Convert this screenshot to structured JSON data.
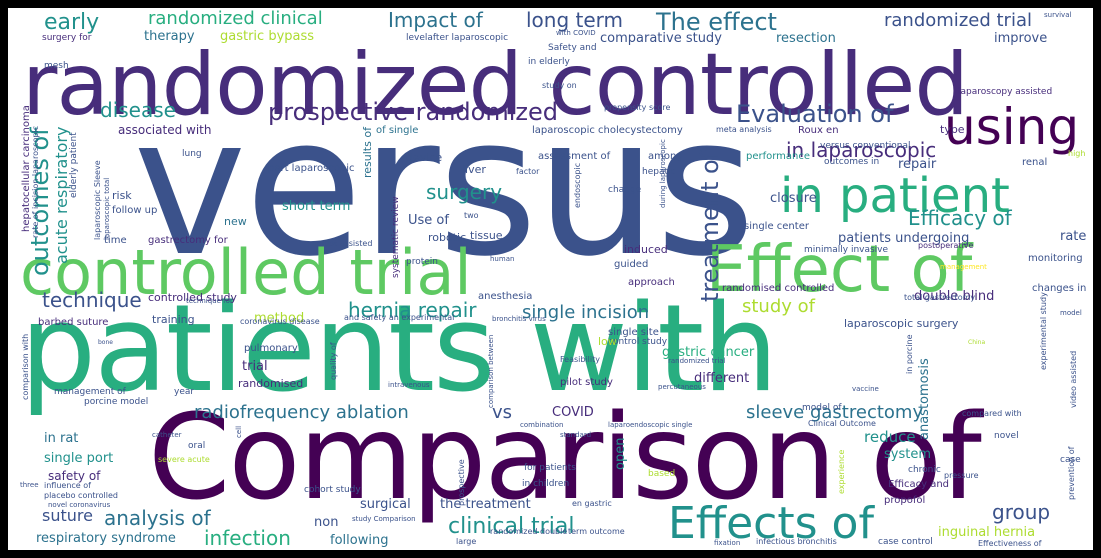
{
  "palette": {
    "dark_purple": "#440154",
    "purple": "#472d7b",
    "indigo": "#3b528b",
    "blue": "#2c728e",
    "teal": "#21918c",
    "green_teal": "#28ae80",
    "green": "#5ec962",
    "lime": "#addc30",
    "yellow": "#fde725"
  },
  "words": [
    {
      "text": "versus",
      "weight": 1.0
    },
    {
      "text": "randomized controlled",
      "weight": 0.96
    },
    {
      "text": "Comparison of",
      "weight": 0.94
    },
    {
      "text": "patients with",
      "weight": 0.92
    },
    {
      "text": "controlled trial",
      "weight": 0.7
    },
    {
      "text": "Effect of",
      "weight": 0.68
    },
    {
      "text": "in patient",
      "weight": 0.62
    },
    {
      "text": "using",
      "weight": 0.6
    },
    {
      "text": "Effects of",
      "weight": 0.55
    },
    {
      "text": "prospective randomized",
      "weight": 0.45
    },
    {
      "text": "Evaluation of",
      "weight": 0.42
    },
    {
      "text": "treatment of",
      "weight": 0.4
    },
    {
      "text": "outcomes of",
      "weight": 0.38
    },
    {
      "text": "in laparoscopic",
      "weight": 0.36
    },
    {
      "text": "hernia repair",
      "weight": 0.35
    },
    {
      "text": "clinical trial",
      "weight": 0.35
    },
    {
      "text": "randomized clinical",
      "weight": 0.3
    },
    {
      "text": "The effect",
      "weight": 0.34
    },
    {
      "text": "Impact of",
      "weight": 0.3
    },
    {
      "text": "long term",
      "weight": 0.3
    },
    {
      "text": "randomized trial",
      "weight": 0.28
    },
    {
      "text": "early",
      "weight": 0.3
    },
    {
      "text": "disease",
      "weight": 0.3
    },
    {
      "text": "surgery",
      "weight": 0.3
    },
    {
      "text": "Efficacy of",
      "weight": 0.3
    },
    {
      "text": "technique",
      "weight": 0.3
    },
    {
      "text": "single incision",
      "weight": 0.3
    },
    {
      "text": "study of",
      "weight": 0.3
    },
    {
      "text": "radiofrequency ablation",
      "weight": 0.3
    },
    {
      "text": "sleeve gastrectomy",
      "weight": 0.3
    },
    {
      "text": "analysis of",
      "weight": 0.3
    },
    {
      "text": "infection",
      "weight": 0.3
    },
    {
      "text": "group",
      "weight": 0.3
    },
    {
      "text": "acute respiratory",
      "weight": 0.25
    },
    {
      "text": "gastric bypass",
      "weight": 0.22
    },
    {
      "text": "comparative study",
      "weight": 0.2
    },
    {
      "text": "therapy",
      "weight": 0.2
    },
    {
      "text": "resection",
      "weight": 0.2
    },
    {
      "text": "improve",
      "weight": 0.2
    },
    {
      "text": "associated with",
      "weight": 0.18
    },
    {
      "text": "short term",
      "weight": 0.2
    },
    {
      "text": "Use of",
      "weight": 0.2
    },
    {
      "text": "repair",
      "weight": 0.2
    },
    {
      "text": "closure",
      "weight": 0.2
    },
    {
      "text": "rate",
      "weight": 0.2
    },
    {
      "text": "patients undergoing",
      "weight": 0.2
    },
    {
      "text": "double blind",
      "weight": 0.2
    },
    {
      "text": "controlled study",
      "weight": 0.18
    },
    {
      "text": "method",
      "weight": 0.2
    },
    {
      "text": "laparoscopic surgery",
      "weight": 0.16
    },
    {
      "text": "trial",
      "weight": 0.2
    },
    {
      "text": "randomised",
      "weight": 0.16
    },
    {
      "text": "different",
      "weight": 0.2
    },
    {
      "text": "gastric cancer",
      "weight": 0.2
    },
    {
      "text": "anastomosis",
      "weight": 0.2
    },
    {
      "text": "reduce",
      "weight": 0.22
    },
    {
      "text": "system",
      "weight": 0.2
    },
    {
      "text": "in rat",
      "weight": 0.2
    },
    {
      "text": "single port",
      "weight": 0.2
    },
    {
      "text": "vs",
      "weight": 0.22
    },
    {
      "text": "COVID",
      "weight": 0.2
    },
    {
      "text": "open",
      "weight": 0.2
    },
    {
      "text": "safety of",
      "weight": 0.18
    },
    {
      "text": "suture",
      "weight": 0.2
    },
    {
      "text": "non",
      "weight": 0.2
    },
    {
      "text": "surgical",
      "weight": 0.2
    },
    {
      "text": "the treatment",
      "weight": 0.2
    },
    {
      "text": "inguinal hernia",
      "weight": 0.2
    },
    {
      "text": "respiratory syndrome",
      "weight": 0.2
    },
    {
      "text": "following",
      "weight": 0.2
    },
    {
      "text": "mesh",
      "weight": 0.1
    },
    {
      "text": "surgery for",
      "weight": 0.1
    },
    {
      "text": "levelafter laparoscopic",
      "weight": 0.1
    },
    {
      "text": "Safety and",
      "weight": 0.1
    },
    {
      "text": "in elderly",
      "weight": 0.1
    },
    {
      "text": "study on",
      "weight": 0.08
    },
    {
      "text": "with COVID",
      "weight": 0.06
    },
    {
      "text": "hepatocellular carcinoma",
      "weight": 0.12
    },
    {
      "text": "elderly patient",
      "weight": 0.1
    },
    {
      "text": "rate of incision laparoscopic",
      "weight": 0.08
    },
    {
      "text": "laparoscopic Sleeve",
      "weight": 0.08
    },
    {
      "text": "laparoscopic total",
      "weight": 0.06
    },
    {
      "text": "risk",
      "weight": 0.12
    },
    {
      "text": "follow up",
      "weight": 0.1
    },
    {
      "text": "lung",
      "weight": 0.08
    },
    {
      "text": "of single",
      "weight": 0.1
    },
    {
      "text": "laparoscopic cholecystectomy",
      "weight": 0.1
    },
    {
      "text": "meta analysis",
      "weight": 0.08
    },
    {
      "text": "Roux en",
      "weight": 0.12
    },
    {
      "text": "type",
      "weight": 0.12
    },
    {
      "text": "laparoscopy assisted",
      "weight": 0.1
    },
    {
      "text": "propensity score",
      "weight": 0.08
    },
    {
      "text": "results of",
      "weight": 0.12
    },
    {
      "text": "device",
      "weight": 0.12
    },
    {
      "text": "liver",
      "weight": 0.12
    },
    {
      "text": "assessment of",
      "weight": 0.12
    },
    {
      "text": "among",
      "weight": 0.12
    },
    {
      "text": "performance",
      "weight": 0.12
    },
    {
      "text": "versus conventional",
      "weight": 0.1
    },
    {
      "text": "outcomes in",
      "weight": 0.1
    },
    {
      "text": "renal",
      "weight": 0.12
    },
    {
      "text": "high",
      "weight": 0.08
    },
    {
      "text": "factor",
      "weight": 0.08
    },
    {
      "text": "change",
      "weight": 0.1
    },
    {
      "text": "hepatic",
      "weight": 0.1
    },
    {
      "text": "endoscopic",
      "weight": 0.08
    },
    {
      "text": "during laparoscopic",
      "weight": 0.06
    },
    {
      "text": "part laparoscopic",
      "weight": 0.1
    },
    {
      "text": "new",
      "weight": 0.12
    },
    {
      "text": "time",
      "weight": 0.1
    },
    {
      "text": "gastrectomy for",
      "weight": 0.1
    },
    {
      "text": "robotic",
      "weight": 0.12
    },
    {
      "text": "tissue",
      "weight": 0.12
    },
    {
      "text": "two",
      "weight": 0.08
    },
    {
      "text": "systematic review",
      "weight": 0.1
    },
    {
      "text": "robot assisted",
      "weight": 0.08
    },
    {
      "text": "induced",
      "weight": 0.12
    },
    {
      "text": "guided",
      "weight": 0.1
    },
    {
      "text": "single center",
      "weight": 0.1
    },
    {
      "text": "minimally invasive",
      "weight": 0.08
    },
    {
      "text": "postoperative",
      "weight": 0.08
    },
    {
      "text": "monitoring",
      "weight": 0.1
    },
    {
      "text": "management",
      "weight": 0.06
    },
    {
      "text": "protein",
      "weight": 0.08
    },
    {
      "text": "human",
      "weight": 0.06
    },
    {
      "text": "approach",
      "weight": 0.1
    },
    {
      "text": "randomised controlled",
      "weight": 0.1
    },
    {
      "text": "total gastrectomy",
      "weight": 0.08
    },
    {
      "text": "changes in",
      "weight": 0.1
    },
    {
      "text": "technique for",
      "weight": 0.06
    },
    {
      "text": "training",
      "weight": 0.12
    },
    {
      "text": "anesthesia",
      "weight": 0.1
    },
    {
      "text": "bronchitis virus",
      "weight": 0.06
    },
    {
      "text": "barbed suture",
      "weight": 0.1
    },
    {
      "text": "coronavirus disease",
      "weight": 0.08
    },
    {
      "text": "and safety an experimental",
      "weight": 0.08
    },
    {
      "text": "single site",
      "weight": 0.1
    },
    {
      "text": "control study",
      "weight": 0.1
    },
    {
      "text": "experimental study",
      "weight": 0.08
    },
    {
      "text": "model",
      "weight": 0.06
    },
    {
      "text": "pulmonary",
      "weight": 0.1
    },
    {
      "text": "quality of",
      "weight": 0.08
    },
    {
      "text": "low",
      "weight": 0.12
    },
    {
      "text": "randomized trial",
      "weight": 0.06
    },
    {
      "text": "Feasibility",
      "weight": 0.08
    },
    {
      "text": "percutaneous",
      "weight": 0.06
    },
    {
      "text": "in porcine",
      "weight": 0.08
    },
    {
      "text": "video assisted",
      "weight": 0.08
    },
    {
      "text": "comparison with",
      "weight": 0.08
    },
    {
      "text": "intravenous",
      "weight": 0.06
    },
    {
      "text": "pilot study",
      "weight": 0.12
    },
    {
      "text": "vaccine",
      "weight": 0.06
    },
    {
      "text": "management of",
      "weight": 0.1
    },
    {
      "text": "porcine model",
      "weight": 0.1
    },
    {
      "text": "year",
      "weight": 0.1
    },
    {
      "text": "comparison between",
      "weight": 0.06
    },
    {
      "text": "model of",
      "weight": 0.1
    },
    {
      "text": "compared with",
      "weight": 0.08
    },
    {
      "text": "novel",
      "weight": 0.1
    },
    {
      "text": "oral",
      "weight": 0.1
    },
    {
      "text": "severe acute",
      "weight": 0.08
    },
    {
      "text": "cell",
      "weight": 0.06
    },
    {
      "text": "combination",
      "weight": 0.06
    },
    {
      "text": "laparoendoscopic single",
      "weight": 0.06
    },
    {
      "text": "standard",
      "weight": 0.06
    },
    {
      "text": "Clinical Outcome",
      "weight": 0.08
    },
    {
      "text": "catheter",
      "weight": 0.06
    },
    {
      "text": "case",
      "weight": 0.08
    },
    {
      "text": "three",
      "weight": 0.06
    },
    {
      "text": "influence of",
      "weight": 0.08
    },
    {
      "text": "placebo controlled",
      "weight": 0.08
    },
    {
      "text": "novel coronavirus",
      "weight": 0.06
    },
    {
      "text": "for patients",
      "weight": 0.1
    },
    {
      "text": "based",
      "weight": 0.1
    },
    {
      "text": "experience",
      "weight": 0.08
    },
    {
      "text": "chronic",
      "weight": 0.1
    },
    {
      "text": "Efficacy and",
      "weight": 0.1
    },
    {
      "text": "pressure",
      "weight": 0.08
    },
    {
      "text": "propofol",
      "weight": 0.1
    },
    {
      "text": "prevention of",
      "weight": 0.08
    },
    {
      "text": "in children",
      "weight": 0.1
    },
    {
      "text": "en gastric",
      "weight": 0.08
    },
    {
      "text": "cohort study",
      "weight": 0.1
    },
    {
      "text": "prospective",
      "weight": 0.08
    },
    {
      "text": "study Comparison",
      "weight": 0.06
    },
    {
      "text": "randomized double",
      "weight": 0.08
    },
    {
      "text": "term outcome",
      "weight": 0.08
    },
    {
      "text": "fixation",
      "weight": 0.06
    },
    {
      "text": "infectious bronchitis",
      "weight": 0.08
    },
    {
      "text": "case control",
      "weight": 0.1
    },
    {
      "text": "Effectiveness of",
      "weight": 0.08
    },
    {
      "text": "large",
      "weight": 0.08
    },
    {
      "text": "survival",
      "weight": 0.06
    },
    {
      "text": "bone",
      "weight": 0.06
    },
    {
      "text": "China",
      "weight": 0.05
    }
  ]
}
